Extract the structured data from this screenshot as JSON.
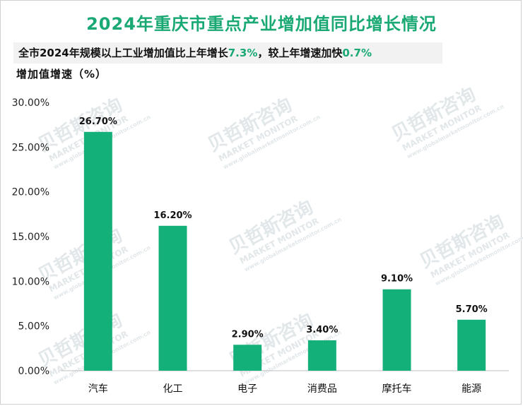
{
  "title": "2024年重庆市重点产业增加值同比增长情况",
  "banner": {
    "prefix": "全市2024年规模以上工业增加值比上年增长",
    "growth": "7.3%",
    "middle": "，较上年增速加快",
    "acceleration": "0.7%"
  },
  "watermark": {
    "cn": "贝哲斯咨询",
    "en": "MARKET MONITOR",
    "url": "www.globalmarketmonitor.com.cn"
  },
  "colors": {
    "bar": "#13b07a",
    "accent": "#1aa974"
  },
  "chart_data": {
    "type": "bar",
    "title": "2024年重庆市重点产业增加值同比增长情况",
    "ylabel": "增加值增速（%）",
    "xlabel": "",
    "categories": [
      "汽车",
      "化工",
      "电子",
      "消费品",
      "摩托车",
      "能源"
    ],
    "values": [
      26.7,
      16.2,
      2.9,
      3.4,
      9.1,
      5.7
    ],
    "value_labels": [
      "26.70%",
      "16.20%",
      "2.90%",
      "3.40%",
      "9.10%",
      "5.70%"
    ],
    "ylim": [
      0,
      30
    ],
    "yticks": [
      0,
      5,
      10,
      15,
      20,
      25,
      30
    ],
    "ytick_labels": [
      "0.00%",
      "5.00%",
      "10.00%",
      "15.00%",
      "20.00%",
      "25.00%",
      "30.00%"
    ],
    "grid": false,
    "legend": "none"
  }
}
